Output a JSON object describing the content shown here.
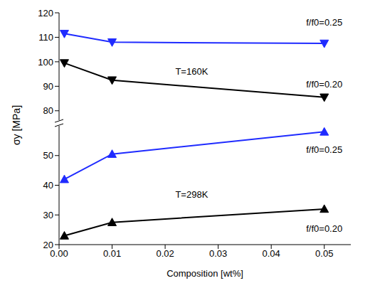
{
  "chart_data": [
    {
      "type": "line",
      "x": [
        0.001,
        0.01,
        0.05
      ],
      "xlim": [
        0,
        0.055
      ],
      "ylim": [
        75,
        120
      ],
      "yticks": [
        80,
        90,
        100,
        110,
        120
      ],
      "tick_labels": "y",
      "series": [
        {
          "color": "#1f2bff",
          "marker": "triangle-down",
          "values": [
            111.5,
            108,
            107.5
          ]
        },
        {
          "color": "#000000",
          "marker": "triangle-down",
          "values": [
            99.5,
            92.5,
            85.5
          ]
        }
      ],
      "annotations": [
        {
          "text": "f/f0=0.25",
          "x": 0.05,
          "y": 116
        },
        {
          "text": "T=160K",
          "x": 0.025,
          "y": 96
        },
        {
          "text": "f/f0=0.20",
          "x": 0.05,
          "y": 91
        }
      ]
    },
    {
      "type": "line",
      "x": [
        0.001,
        0.01,
        0.05
      ],
      "xlim": [
        0,
        0.055
      ],
      "ylim": [
        20,
        60
      ],
      "xticks": [
        {
          "value": 0,
          "label": "0.00"
        },
        {
          "value": 0.01,
          "label": "0.01"
        },
        {
          "value": 0.02,
          "label": "0.02"
        },
        {
          "value": 0.03,
          "label": "0.03"
        },
        {
          "value": 0.04,
          "label": "0.04"
        },
        {
          "value": 0.05,
          "label": "0.05"
        }
      ],
      "yticks": [
        20,
        30,
        40,
        50
      ],
      "xlabel": "Composition [wt%]",
      "ylabel": "σy [MPa]",
      "series": [
        {
          "color": "#1f2bff",
          "marker": "triangle-up",
          "values": [
            42,
            50.5,
            58
          ]
        },
        {
          "color": "#000000",
          "marker": "triangle-up",
          "values": [
            23,
            27.5,
            32
          ]
        }
      ],
      "annotations": [
        {
          "text": "f/f0=0.25",
          "x": 0.05,
          "y": 52
        },
        {
          "text": "T=298K",
          "x": 0.025,
          "y": 37
        },
        {
          "text": "f/f0=0.20",
          "x": 0.05,
          "y": 25.5
        }
      ]
    }
  ]
}
